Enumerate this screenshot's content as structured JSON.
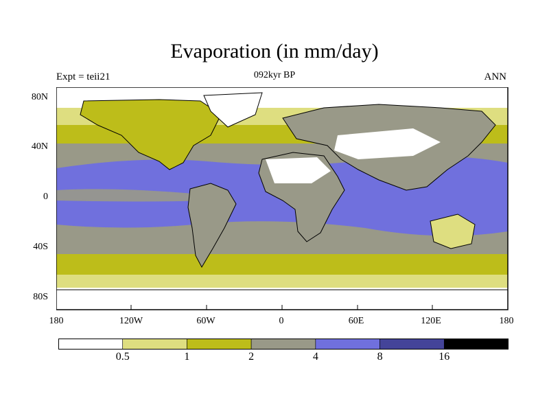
{
  "title": "Evaporation (in mm/day)",
  "subtitle_left": "Expt = teii21",
  "subtitle_center": "092kyr BP",
  "subtitle_right": "ANN",
  "lat_ticks": [
    "80N",
    "40N",
    "0",
    "40S",
    "80S"
  ],
  "lon_ticks": [
    "180",
    "120W",
    "60W",
    "0",
    "60E",
    "120E",
    "180"
  ],
  "colorbar": {
    "levels": [
      "0.5",
      "1",
      "2",
      "4",
      "8",
      "16"
    ],
    "colors": [
      "#ffffff",
      "#dede80",
      "#bdbd1a",
      "#999988",
      "#7070dd",
      "#444499",
      "#000000"
    ]
  }
}
